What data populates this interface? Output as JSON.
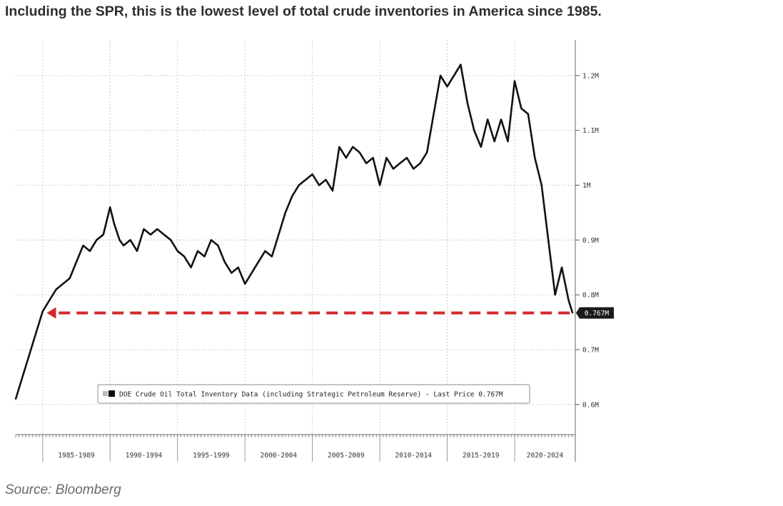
{
  "headline": "Including the SPR, this is the lowest level of total crude inventories in America since 1985.",
  "source": "Source: Bloomberg",
  "colors": {
    "line": "#111111",
    "arrow": "#d42a2a",
    "grid": "#bdbdbd",
    "badge_bg": "#1a1a1a",
    "badge_text": "#ffffff"
  },
  "chart_data": {
    "type": "line",
    "title": "",
    "xlabel": "",
    "ylabel": "",
    "xlim": [
      1983.0,
      2024.5
    ],
    "ylim": [
      0.545,
      1.265
    ],
    "x_ticks": [
      {
        "start": 1985,
        "end": 1990,
        "label": "1985-1989"
      },
      {
        "start": 1990,
        "end": 1995,
        "label": "1990-1994"
      },
      {
        "start": 1995,
        "end": 2000,
        "label": "1995-1999"
      },
      {
        "start": 2000,
        "end": 2005,
        "label": "2000-2004"
      },
      {
        "start": 2005,
        "end": 2010,
        "label": "2005-2009"
      },
      {
        "start": 2010,
        "end": 2015,
        "label": "2010-2014"
      },
      {
        "start": 2015,
        "end": 2020,
        "label": "2015-2019"
      },
      {
        "start": 2020,
        "end": 2024.5,
        "label": "2020-2024"
      }
    ],
    "y_ticks": [
      {
        "value": 0.6,
        "label": "0.6M"
      },
      {
        "value": 0.7,
        "label": "0.7M"
      },
      {
        "value": 0.8,
        "label": "0.8M"
      },
      {
        "value": 0.9,
        "label": "0.9M"
      },
      {
        "value": 1.0,
        "label": "1M"
      },
      {
        "value": 1.1,
        "label": "1.1M"
      },
      {
        "value": 1.2,
        "label": "1.2M"
      }
    ],
    "grid": true,
    "series": [
      {
        "name": "DOE Crude Oil Total Inventory Data (including Strategic Petroleum Reserve)",
        "x": [
          1983.0,
          1983.5,
          1984.0,
          1984.5,
          1985.0,
          1985.5,
          1986.0,
          1986.5,
          1987.0,
          1987.5,
          1988.0,
          1988.5,
          1989.0,
          1989.5,
          1990.0,
          1990.3,
          1990.7,
          1991.0,
          1991.5,
          1992.0,
          1992.5,
          1993.0,
          1993.5,
          1994.0,
          1994.5,
          1995.0,
          1995.5,
          1996.0,
          1996.5,
          1997.0,
          1997.5,
          1998.0,
          1998.5,
          1999.0,
          1999.5,
          2000.0,
          2000.5,
          2001.0,
          2001.5,
          2002.0,
          2002.5,
          2003.0,
          2003.5,
          2004.0,
          2004.5,
          2005.0,
          2005.5,
          2006.0,
          2006.5,
          2007.0,
          2007.5,
          2008.0,
          2008.5,
          2009.0,
          2009.5,
          2010.0,
          2010.5,
          2011.0,
          2011.5,
          2012.0,
          2012.5,
          2013.0,
          2013.5,
          2014.0,
          2014.5,
          2015.0,
          2015.5,
          2016.0,
          2016.5,
          2017.0,
          2017.5,
          2018.0,
          2018.5,
          2019.0,
          2019.5,
          2020.0,
          2020.5,
          2021.0,
          2021.5,
          2022.0,
          2022.5,
          2023.0,
          2023.5,
          2024.0,
          2024.3
        ],
        "values": [
          0.61,
          0.65,
          0.69,
          0.73,
          0.77,
          0.79,
          0.81,
          0.82,
          0.83,
          0.86,
          0.89,
          0.88,
          0.9,
          0.91,
          0.96,
          0.93,
          0.9,
          0.89,
          0.9,
          0.88,
          0.92,
          0.91,
          0.92,
          0.91,
          0.9,
          0.88,
          0.87,
          0.85,
          0.88,
          0.87,
          0.9,
          0.89,
          0.86,
          0.84,
          0.85,
          0.82,
          0.84,
          0.86,
          0.88,
          0.87,
          0.91,
          0.95,
          0.98,
          1.0,
          1.01,
          1.02,
          1.0,
          1.01,
          0.99,
          1.07,
          1.05,
          1.07,
          1.06,
          1.04,
          1.05,
          1.0,
          1.05,
          1.03,
          1.04,
          1.05,
          1.03,
          1.04,
          1.06,
          1.13,
          1.2,
          1.18,
          1.2,
          1.22,
          1.15,
          1.1,
          1.07,
          1.12,
          1.08,
          1.12,
          1.08,
          1.19,
          1.14,
          1.13,
          1.05,
          1.0,
          0.9,
          0.8,
          0.85,
          0.79,
          0.767
        ]
      }
    ],
    "reference_line": {
      "value": 0.767,
      "from_x": 2024.3,
      "to_x": 1985.3,
      "style": "dashed-arrow"
    },
    "last_value_label": "0.767M",
    "legend": {
      "text": "DOE Crude Oil Total Inventory Data (including Strategic Petroleum Reserve) - Last Price 0.767M",
      "placement": "bottom-center"
    }
  }
}
